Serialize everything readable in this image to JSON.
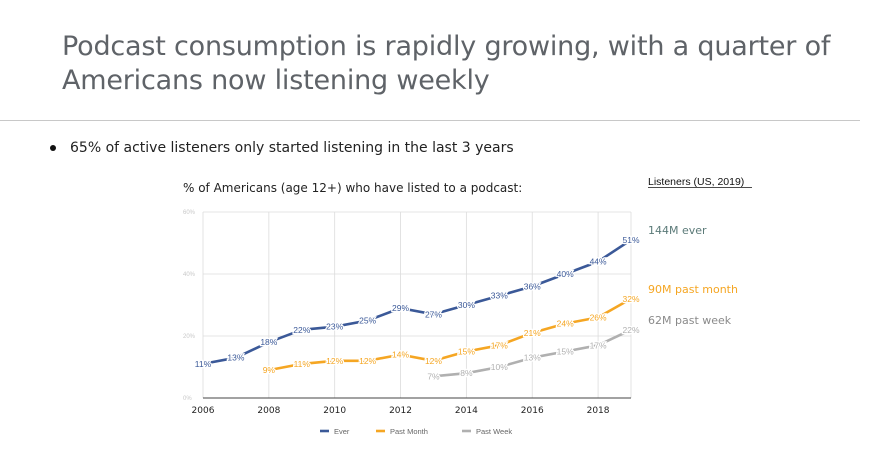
{
  "slide": {
    "title": "Podcast consumption is rapidly growing, with a quarter of Americans now listening weekly",
    "bullet": "65% of active listeners only started listening in the last 3 years"
  },
  "side_panel": {
    "heading": "Listeners (US, 2019)",
    "labels": [
      {
        "text": "144M ever",
        "series": "Ever",
        "color": "#5b7a78"
      },
      {
        "text": "90M past month",
        "series": "Past Month",
        "color": "#f5a623"
      },
      {
        "text": "62M past week",
        "series": "Past Week",
        "color": "#8a8a8a"
      }
    ]
  },
  "chart_data": {
    "type": "line",
    "title": "% of Americans (age 12+) who have listed to a podcast:",
    "xlabel": "",
    "ylabel": "",
    "xlim": [
      2006,
      2019
    ],
    "ylim": [
      0,
      60
    ],
    "x_ticks": [
      "2006",
      "2008",
      "2010",
      "2012",
      "2014",
      "2016",
      "2018"
    ],
    "y_ticks": [
      "0%",
      "20%",
      "40%",
      "60%"
    ],
    "grid": true,
    "legend_position": "bottom",
    "series": [
      {
        "name": "Ever",
        "color": "#3b5998",
        "x": [
          2006,
          2007,
          2008,
          2009,
          2010,
          2011,
          2012,
          2013,
          2014,
          2015,
          2016,
          2017,
          2018,
          2019
        ],
        "values": [
          11,
          13,
          18,
          22,
          23,
          25,
          29,
          27,
          30,
          33,
          36,
          40,
          44,
          51
        ],
        "labels": [
          "11%",
          "13%",
          "18%",
          "22%",
          "23%",
          "25%",
          "29%",
          "27%",
          "30%",
          "33%",
          "36%",
          "40%",
          "44%",
          "51%"
        ]
      },
      {
        "name": "Past Month",
        "color": "#f5a623",
        "x": [
          2008,
          2009,
          2010,
          2011,
          2012,
          2013,
          2014,
          2015,
          2016,
          2017,
          2018,
          2019
        ],
        "values": [
          9,
          11,
          12,
          12,
          14,
          12,
          15,
          17,
          21,
          24,
          26,
          32
        ],
        "labels": [
          "9%",
          "11%",
          "12%",
          "12%",
          "14%",
          "12%",
          "15%",
          "17%",
          "21%",
          "24%",
          "26%",
          "32%"
        ]
      },
      {
        "name": "Past Week",
        "color": "#b0b0b0",
        "x": [
          2013,
          2014,
          2015,
          2016,
          2017,
          2018,
          2019
        ],
        "values": [
          7,
          8,
          10,
          13,
          15,
          17,
          22
        ],
        "labels": [
          "7%",
          "8%",
          "10%",
          "13%",
          "15%",
          "17%",
          "22%"
        ]
      }
    ]
  }
}
